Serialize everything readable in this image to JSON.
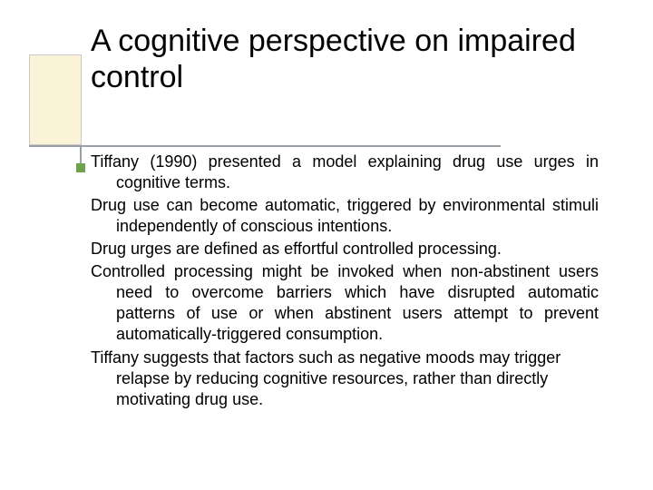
{
  "slide": {
    "title": "A cognitive perspective on impaired control",
    "paragraphs": [
      "Tiffany (1990) presented a model explaining drug use urges in cognitive terms.",
      "Drug use can become automatic, triggered by environmental stimuli independently of conscious intentions.",
      "Drug urges are defined as effortful controlled processing.",
      "Controlled processing might be invoked when non-abstinent users need to overcome barriers which have disrupted automatic patterns of use or when abstinent users attempt to prevent automatically-triggered consumption.",
      "Tiffany suggests that factors such as negative moods may trigger relapse by reducing cognitive resources, rather than directly motivating drug use."
    ]
  },
  "style": {
    "background_color": "#ffffff",
    "title_color": "#000000",
    "title_fontsize_pt": 26,
    "body_color": "#000000",
    "body_fontsize_pt": 14,
    "deco_box_fill": "#faf3d8",
    "deco_box_border": "#c9c9c9",
    "deco_line_color": "#9aa0a6",
    "deco_bullet_color": "#6da34d"
  }
}
